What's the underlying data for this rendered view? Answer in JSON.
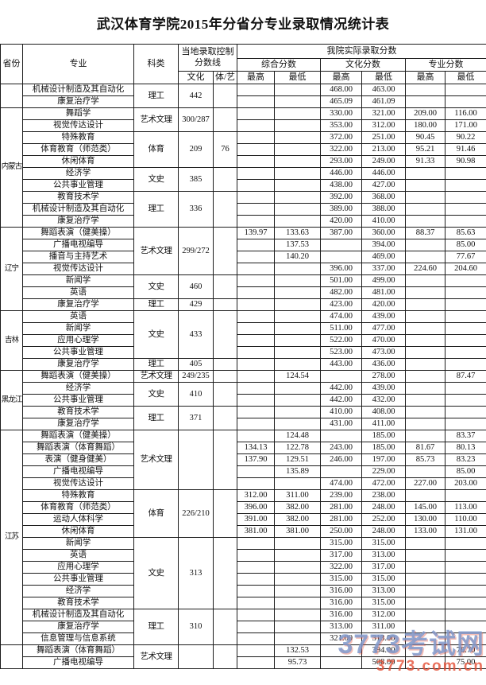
{
  "title": "武汉体育学院2015年分省分专业录取情况统计表",
  "header": {
    "province": "省份",
    "major": "专业",
    "category": "科类",
    "local_line": "当地录取控制分数线",
    "actual": "我院实际录取分数",
    "culture_col": "文化",
    "sports_arts_col": "体/艺",
    "groups": [
      "综合分数",
      "文化分数",
      "专业分数"
    ],
    "max": "最高",
    "min": "最低"
  },
  "watermark": {
    "line1": "3773考试网",
    "line2": "3773.com.cn",
    "color_big": "#809acc",
    "color_small": "#e44e34"
  },
  "provinces": [
    {
      "name": "",
      "groups": [
        {
          "category": "理工",
          "culture_line": "442",
          "arts_line": "",
          "rows": [
            {
              "major": "机械设计制造及其自动化",
              "cells": [
                "",
                "",
                "468.00",
                "463.00",
                "",
                ""
              ]
            },
            {
              "major": "康复治疗学",
              "cells": [
                "",
                "",
                "465.09",
                "461.09",
                "",
                ""
              ]
            }
          ]
        }
      ]
    },
    {
      "name": "内蒙古",
      "groups": [
        {
          "category": "艺术文理",
          "culture_line": "300/287",
          "arts_line": "",
          "rows": [
            {
              "major": "舞蹈学",
              "cells": [
                "",
                "",
                "330.00",
                "321.00",
                "209.00",
                "116.00"
              ]
            },
            {
              "major": "视觉传达设计",
              "cells": [
                "",
                "",
                "353.00",
                "312.00",
                "180.00",
                "171.00"
              ]
            }
          ]
        },
        {
          "category": "体育",
          "culture_line": "209",
          "arts_line": "76",
          "rows": [
            {
              "major": "特殊教育",
              "cells": [
                "",
                "",
                "372.00",
                "251.00",
                "90.45",
                "90.22"
              ]
            },
            {
              "major": "体育教育（师范类）",
              "cells": [
                "",
                "",
                "322.00",
                "213.00",
                "95.21",
                "91.46"
              ]
            },
            {
              "major": "休闲体育",
              "cells": [
                "",
                "",
                "293.00",
                "249.00",
                "91.33",
                "90.98"
              ]
            }
          ]
        },
        {
          "category": "文史",
          "culture_line": "385",
          "arts_line": "",
          "rows": [
            {
              "major": "经济学",
              "cells": [
                "",
                "",
                "446.00",
                "446.00",
                "",
                ""
              ]
            },
            {
              "major": "公共事业管理",
              "cells": [
                "",
                "",
                "438.00",
                "427.00",
                "",
                ""
              ]
            }
          ]
        },
        {
          "category": "理工",
          "culture_line": "336",
          "arts_line": "",
          "rows": [
            {
              "major": "教育技术学",
              "cells": [
                "",
                "",
                "392.00",
                "368.00",
                "",
                ""
              ]
            },
            {
              "major": "机械设计制造及其自动化",
              "cells": [
                "",
                "",
                "389.00",
                "388.00",
                "",
                ""
              ]
            },
            {
              "major": "康复治疗学",
              "cells": [
                "",
                "",
                "420.00",
                "410.00",
                "",
                ""
              ]
            }
          ]
        }
      ]
    },
    {
      "name": "辽宁",
      "groups": [
        {
          "category": "艺术文理",
          "culture_line": "299/272",
          "arts_line": "",
          "rows": [
            {
              "major": "舞蹈表演（健美操）",
              "cells": [
                "139.97",
                "133.63",
                "387.00",
                "360.00",
                "88.37",
                "85.63"
              ]
            },
            {
              "major": "广播电视编导",
              "cells": [
                "",
                "137.53",
                "",
                "394.00",
                "",
                "85.00"
              ]
            },
            {
              "major": "播音与主持艺术",
              "cells": [
                "",
                "140.20",
                "",
                "469.00",
                "",
                "77.67"
              ]
            },
            {
              "major": "视觉传达设计",
              "cells": [
                "",
                "",
                "396.00",
                "337.00",
                "224.60",
                "204.60"
              ]
            }
          ]
        },
        {
          "category": "文史",
          "culture_line": "460",
          "arts_line": "",
          "rows": [
            {
              "major": "新闻学",
              "cells": [
                "",
                "",
                "501.00",
                "499.00",
                "",
                ""
              ]
            },
            {
              "major": "英语",
              "cells": [
                "",
                "",
                "482.00",
                "481.00",
                "",
                ""
              ]
            }
          ]
        },
        {
          "category": "理工",
          "culture_line": "429",
          "arts_line": "",
          "rows": [
            {
              "major": "康复治疗学",
              "cells": [
                "",
                "",
                "423.00",
                "420.00",
                "",
                ""
              ]
            }
          ]
        }
      ]
    },
    {
      "name": "吉林",
      "groups": [
        {
          "category": "文史",
          "culture_line": "433",
          "arts_line": "",
          "rows": [
            {
              "major": "英语",
              "cells": [
                "",
                "",
                "474.00",
                "439.00",
                "",
                ""
              ]
            },
            {
              "major": "新闻学",
              "cells": [
                "",
                "",
                "511.00",
                "477.00",
                "",
                ""
              ]
            },
            {
              "major": "应用心理学",
              "cells": [
                "",
                "",
                "522.00",
                "470.00",
                "",
                ""
              ]
            },
            {
              "major": "公共事业管理",
              "cells": [
                "",
                "",
                "523.00",
                "473.00",
                "",
                ""
              ]
            }
          ]
        },
        {
          "category": "理工",
          "culture_line": "405",
          "arts_line": "",
          "rows": [
            {
              "major": "康复治疗学",
              "cells": [
                "",
                "",
                "443.00",
                "436.00",
                "",
                ""
              ]
            }
          ]
        }
      ]
    },
    {
      "name": "黑龙江",
      "groups": [
        {
          "category": "艺术文理",
          "culture_line": "249/235",
          "arts_line": "",
          "rows": [
            {
              "major": "舞蹈表演（健美操）",
              "cells": [
                "",
                "124.54",
                "",
                "278.00",
                "",
                "87.47"
              ]
            }
          ]
        },
        {
          "category": "文史",
          "culture_line": "410",
          "arts_line": "",
          "rows": [
            {
              "major": "经济学",
              "cells": [
                "",
                "",
                "442.00",
                "439.00",
                "",
                ""
              ]
            },
            {
              "major": "公共事业管理",
              "cells": [
                "",
                "",
                "442.00",
                "432.00",
                "",
                ""
              ]
            }
          ]
        },
        {
          "category": "理工",
          "culture_line": "371",
          "arts_line": "",
          "rows": [
            {
              "major": "教育技术学",
              "cells": [
                "",
                "",
                "410.00",
                "408.00",
                "",
                ""
              ]
            },
            {
              "major": "康复治疗学",
              "cells": [
                "",
                "",
                "431.00",
                "411.00",
                "",
                ""
              ]
            }
          ]
        }
      ]
    },
    {
      "name": "江苏",
      "groups": [
        {
          "category": "艺术文理",
          "culture_line": "",
          "arts_line": "",
          "rows": [
            {
              "major": "舞蹈表演（健美操）",
              "cells": [
                "",
                "124.48",
                "",
                "185.00",
                "",
                "83.37"
              ]
            },
            {
              "major": "舞蹈表演（体育舞蹈）",
              "cells": [
                "134.13",
                "122.78",
                "243.00",
                "185.00",
                "81.67",
                "80.13"
              ]
            },
            {
              "major": "表演（健身健美）",
              "cells": [
                "137.90",
                "129.51",
                "246.00",
                "197.00",
                "85.73",
                "83.23"
              ]
            },
            {
              "major": "广播电视编导",
              "cells": [
                "",
                "135.89",
                "",
                "229.00",
                "",
                "85.00"
              ]
            },
            {
              "major": "视觉传达设计",
              "cells": [
                "",
                "",
                "474.00",
                "472.00",
                "227.00",
                "203.00"
              ]
            }
          ]
        },
        {
          "category": "体育",
          "culture_line": "226/210",
          "arts_line": "",
          "rows": [
            {
              "major": "特殊教育",
              "cells": [
                "312.00",
                "311.00",
                "239.00",
                "238.00",
                "",
                ""
              ]
            },
            {
              "major": "体育教育（师范类）",
              "cells": [
                "396.00",
                "382.00",
                "281.00",
                "248.00",
                "145.00",
                "113.00"
              ]
            },
            {
              "major": "运动人体科学",
              "cells": [
                "391.00",
                "382.00",
                "281.00",
                "252.00",
                "130.00",
                "110.00"
              ]
            },
            {
              "major": "休闲体育",
              "cells": [
                "381.00",
                "381.00",
                "250.00",
                "248.00",
                "133.00",
                "131.00"
              ]
            }
          ]
        },
        {
          "category": "文史",
          "culture_line": "313",
          "arts_line": "",
          "rows": [
            {
              "major": "新闻学",
              "cells": [
                "",
                "",
                "315.00",
                "315.00",
                "",
                ""
              ]
            },
            {
              "major": "英语",
              "cells": [
                "",
                "",
                "317.00",
                "313.00",
                "",
                ""
              ]
            },
            {
              "major": "应用心理学",
              "cells": [
                "",
                "",
                "322.00",
                "317.00",
                "",
                ""
              ]
            },
            {
              "major": "公共事业管理",
              "cells": [
                "",
                "",
                "315.00",
                "315.00",
                "",
                ""
              ]
            },
            {
              "major": "经济学",
              "cells": [
                "",
                "",
                "316.00",
                "313.00",
                "",
                ""
              ]
            },
            {
              "major": "教育技术学",
              "cells": [
                "",
                "",
                "316.00",
                "315.00",
                "",
                ""
              ]
            }
          ]
        },
        {
          "category": "理工",
          "culture_line": "310",
          "arts_line": "",
          "rows": [
            {
              "major": "机械设计制造及其自动化",
              "cells": [
                "",
                "",
                "316.00",
                "312.00",
                "",
                ""
              ]
            },
            {
              "major": "康复治疗学",
              "cells": [
                "",
                "",
                "313.00",
                "311.00",
                "",
                ""
              ]
            },
            {
              "major": "信息管理与信息系统",
              "cells": [
                "",
                "",
                "321.00",
                "313.00",
                "",
                ""
              ]
            }
          ]
        }
      ]
    },
    {
      "name": "",
      "groups": [
        {
          "category": "艺术文理",
          "culture_line": "",
          "arts_line": "",
          "rows": [
            {
              "major": "舞蹈表演（体育舞蹈）",
              "cells": [
                "",
                "132.53",
                "",
                "394.00",
                "",
                "76.70"
              ]
            },
            {
              "major": "广播电视编导",
              "cells": [
                "",
                "95.73",
                "",
                "508.00",
                "",
                "75.00"
              ]
            }
          ]
        }
      ]
    }
  ]
}
